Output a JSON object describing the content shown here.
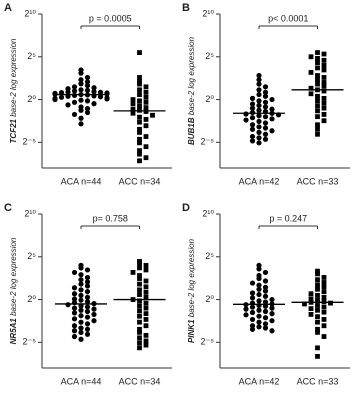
{
  "chart_data": [
    {
      "type": "strip",
      "label": "A",
      "ylabel_gene": "TCF21",
      "ylabel": " base-2 log expression",
      "annotation": "p = 0.0005",
      "categories": [
        "ACA n=44",
        "ACC n=34"
      ],
      "markers": [
        "circle",
        "square"
      ],
      "color": "#000000",
      "log_base": 2,
      "ylim": [
        0.00390625,
        1024
      ],
      "yticks": [
        {
          "value": 0.03125,
          "label": "2⁻⁵"
        },
        {
          "value": 1,
          "label": "2⁰"
        },
        {
          "value": 32,
          "label": "2⁵"
        },
        {
          "value": 1024,
          "label": "2¹⁰"
        }
      ],
      "values": [
        [
          11,
          8.5,
          6,
          5,
          4.2,
          3.6,
          3.1,
          2.8,
          2.6,
          2.4,
          2.2,
          2.1,
          2,
          1.9,
          1.85,
          1.8,
          1.75,
          1.7,
          1.65,
          1.6,
          1.55,
          1.5,
          1.45,
          1.4,
          1.35,
          1.3,
          1.25,
          1.2,
          1.15,
          1.1,
          1.05,
          1,
          0.95,
          0.9,
          0.8,
          0.72,
          0.65,
          0.55,
          0.48,
          0.42,
          0.35,
          0.3,
          0.22,
          0.14
        ],
        [
          45,
          6,
          4.5,
          3.5,
          2.8,
          2.2,
          1.8,
          1.5,
          1.2,
          1,
          0.9,
          0.8,
          0.7,
          0.6,
          0.52,
          0.45,
          0.42,
          0.38,
          0.33,
          0.28,
          0.24,
          0.2,
          0.16,
          0.12,
          0.09,
          0.07,
          0.05,
          0.04,
          0.03,
          0.022,
          0.016,
          0.012,
          0.009,
          0.007
        ]
      ],
      "medians": [
        1.5,
        0.4
      ]
    },
    {
      "type": "strip",
      "label": "B",
      "ylabel_gene": "BUB1B",
      "ylabel": " base-2 log expression",
      "annotation": "p< 0.0001",
      "categories": [
        "ACA n=42",
        "ACC n=33"
      ],
      "markers": [
        "circle",
        "square"
      ],
      "color": "#000000",
      "log_base": 2,
      "ylim": [
        0.00390625,
        1024
      ],
      "yticks": [
        {
          "value": 0.03125,
          "label": "2⁻⁵"
        },
        {
          "value": 1,
          "label": "2⁰"
        },
        {
          "value": 32,
          "label": "2⁵"
        },
        {
          "value": 1024,
          "label": "2¹⁰"
        }
      ],
      "values": [
        [
          7,
          5,
          3.5,
          2.8,
          2.2,
          1.8,
          1.5,
          1.3,
          1.1,
          1,
          0.9,
          0.8,
          0.7,
          0.62,
          0.55,
          0.5,
          0.46,
          0.42,
          0.38,
          0.35,
          0.33,
          0.31,
          0.29,
          0.27,
          0.25,
          0.23,
          0.21,
          0.19,
          0.17,
          0.15,
          0.13,
          0.11,
          0.1,
          0.09,
          0.08,
          0.07,
          0.06,
          0.05,
          0.045,
          0.04,
          0.035,
          0.03
        ],
        [
          45,
          40,
          32,
          28,
          24,
          20,
          16,
          13,
          11,
          9,
          7,
          6,
          5,
          4,
          3.5,
          3,
          2.5,
          2.2,
          2,
          1.6,
          1.3,
          1.1,
          0.9,
          0.75,
          0.6,
          0.5,
          0.4,
          0.3,
          0.25,
          0.18,
          0.13,
          0.09,
          0.06
        ]
      ],
      "medians": [
        0.33,
        2.2
      ]
    },
    {
      "type": "strip",
      "label": "C",
      "ylabel_gene": "NR5A1",
      "ylabel": " base-2 log expression",
      "annotation": "p= 0.758",
      "categories": [
        "ACA n=44",
        "ACC n=34"
      ],
      "markers": [
        "circle",
        "square"
      ],
      "color": "#000000",
      "log_base": 2,
      "ylim": [
        0.00390625,
        1024
      ],
      "yticks": [
        {
          "value": 0.03125,
          "label": "2⁻⁵"
        },
        {
          "value": 1,
          "label": "2⁰"
        },
        {
          "value": 32,
          "label": "2⁵"
        },
        {
          "value": 1024,
          "label": "2¹⁰"
        }
      ],
      "values": [
        [
          16,
          13,
          11,
          9,
          7.5,
          6,
          5,
          4.2,
          3.5,
          3,
          2.6,
          2.2,
          1.9,
          1.6,
          1.4,
          1.2,
          1.05,
          0.95,
          0.85,
          0.78,
          0.72,
          0.66,
          0.6,
          0.55,
          0.5,
          0.46,
          0.42,
          0.38,
          0.34,
          0.3,
          0.27,
          0.24,
          0.21,
          0.18,
          0.16,
          0.14,
          0.12,
          0.1,
          0.09,
          0.08,
          0.07,
          0.06,
          0.05,
          0.04
        ],
        [
          22,
          19,
          16,
          13,
          11,
          9,
          7,
          5.5,
          4.5,
          3.5,
          2.8,
          2.2,
          1.8,
          1.5,
          1.2,
          1,
          0.9,
          0.75,
          0.6,
          0.5,
          0.4,
          0.32,
          0.26,
          0.2,
          0.16,
          0.12,
          0.09,
          0.07,
          0.055,
          0.045,
          0.035,
          0.03,
          0.025,
          0.02
        ]
      ],
      "medians": [
        0.7,
        1
      ]
    },
    {
      "type": "strip",
      "label": "D",
      "ylabel_gene": "PINK1",
      "ylabel": " base-2 log expression",
      "annotation": "p = 0.247",
      "categories": [
        "ACA n=42",
        "ACC n=33"
      ],
      "markers": [
        "circle",
        "square"
      ],
      "color": "#000000",
      "log_base": 2,
      "ylim": [
        0.00390625,
        1024
      ],
      "yticks": [
        {
          "value": 0.03125,
          "label": "2⁻⁵"
        },
        {
          "value": 1,
          "label": "2⁰"
        },
        {
          "value": 32,
          "label": "2⁵"
        },
        {
          "value": 1024,
          "label": "2¹⁰"
        }
      ],
      "values": [
        [
          16,
          12,
          9,
          7,
          5.5,
          4.5,
          3.8,
          3.2,
          2.7,
          2.3,
          2,
          1.7,
          1.5,
          1.3,
          1.15,
          1,
          0.9,
          0.82,
          0.75,
          0.7,
          0.66,
          0.62,
          0.58,
          0.54,
          0.5,
          0.46,
          0.42,
          0.38,
          0.35,
          0.32,
          0.29,
          0.26,
          0.23,
          0.2,
          0.18,
          0.16,
          0.14,
          0.12,
          0.11,
          0.1,
          0.09,
          0.08
        ],
        [
          10,
          8,
          6,
          5,
          4,
          3.3,
          2.8,
          2.3,
          1.9,
          1.6,
          1.4,
          1.2,
          1.05,
          0.95,
          0.85,
          0.8,
          0.75,
          0.7,
          0.62,
          0.55,
          0.48,
          0.42,
          0.36,
          0.3,
          0.25,
          0.2,
          0.16,
          0.12,
          0.09,
          0.07,
          0.05,
          0.02,
          0.01
        ]
      ],
      "medians": [
        0.68,
        0.8
      ]
    }
  ]
}
